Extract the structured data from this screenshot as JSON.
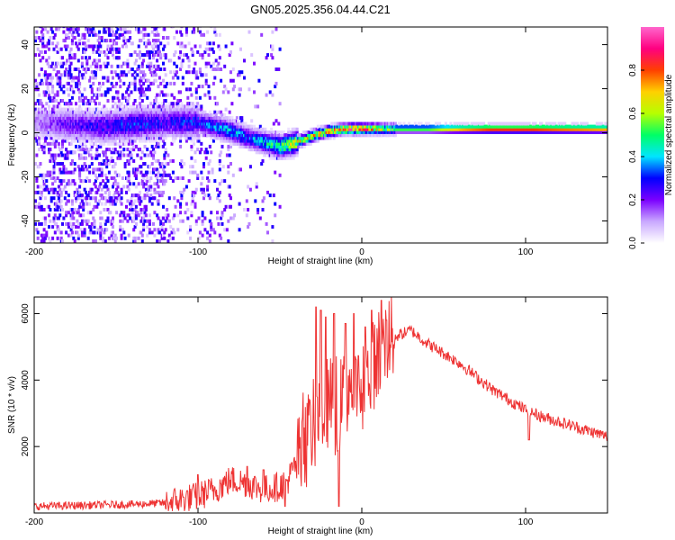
{
  "title": "GN05.2025.356.04.44.C21",
  "chart_data": [
    {
      "type": "heatmap",
      "name": "spectrogram",
      "xlabel": "Height of straight line (km)",
      "ylabel": "Frequency (Hz)",
      "xlim": [
        -200,
        150
      ],
      "ylim": [
        -50,
        48
      ],
      "xticks": [
        "-200",
        "-100",
        "0",
        "100"
      ],
      "yticks": [
        "40",
        "20",
        "0",
        "-20",
        "-40"
      ],
      "colorbar": {
        "label": "Normalized spectral amplitude",
        "range": [
          0,
          1
        ],
        "ticks": [
          "0.0",
          "0.2",
          "0.4",
          "0.6",
          "0.8"
        ],
        "colors": [
          "#ffffff",
          "#c9a8ff",
          "#7b00ff",
          "#0000ff",
          "#00e5ff",
          "#00ff66",
          "#b6ff00",
          "#ffd000",
          "#ff4000",
          "#ff0080",
          "#ff66cc"
        ]
      },
      "ridge": {
        "height_km": [
          -200,
          -180,
          -160,
          -140,
          -120,
          -100,
          -90,
          -80,
          -70,
          -60,
          -50,
          -40,
          -30,
          -20,
          -10,
          0,
          10,
          20,
          40,
          60,
          80,
          100,
          120,
          150
        ],
        "frequency_hz": [
          4,
          3,
          2,
          3,
          4,
          4,
          2,
          0,
          -3,
          -5,
          -7,
          -5,
          -2,
          0,
          1,
          1,
          1,
          1,
          1,
          1,
          1,
          1,
          1,
          1
        ],
        "amplitude": [
          0.15,
          0.25,
          0.3,
          0.35,
          0.3,
          0.35,
          0.4,
          0.45,
          0.4,
          0.45,
          0.6,
          0.75,
          0.8,
          0.85,
          0.9,
          0.9,
          0.7,
          0.55,
          0.55,
          0.75,
          0.85,
          0.85,
          0.8,
          0.75
        ]
      }
    },
    {
      "type": "line",
      "name": "snr",
      "xlabel": "Height of straight line (km)",
      "ylabel": "SNR (10 * v/v)",
      "xlim": [
        -200,
        150
      ],
      "ylim": [
        0,
        6500
      ],
      "xticks": [
        "-200",
        "-100",
        "0",
        "100"
      ],
      "yticks": [
        "6000",
        "4000",
        "2000"
      ],
      "color": "#ee3333",
      "series": [
        {
          "name": "SNR",
          "x": [
            -200,
            -180,
            -160,
            -140,
            -120,
            -100,
            -90,
            -80,
            -70,
            -60,
            -50,
            -45,
            -40,
            -35,
            -30,
            -25,
            -20,
            -15,
            -10,
            -5,
            0,
            5,
            10,
            15,
            20,
            25,
            30,
            35,
            40,
            50,
            60,
            70,
            80,
            90,
            100,
            110,
            120,
            130,
            140,
            150
          ],
          "y": [
            200,
            220,
            240,
            260,
            300,
            500,
            700,
            1000,
            900,
            700,
            800,
            1000,
            1500,
            2000,
            2600,
            3000,
            3400,
            3000,
            3700,
            3800,
            3500,
            4200,
            4800,
            5200,
            5300,
            5400,
            5500,
            5300,
            5100,
            4800,
            4500,
            4100,
            3700,
            3400,
            3100,
            2900,
            2750,
            2600,
            2450,
            2300
          ]
        }
      ],
      "spikes": [
        {
          "x": -28,
          "y": 6200
        },
        {
          "x": -25,
          "y": 6100
        },
        {
          "x": -22,
          "y": 5900
        },
        {
          "x": -17,
          "y": 6000
        },
        {
          "x": -14,
          "y": 200
        },
        {
          "x": -10,
          "y": 5700
        },
        {
          "x": -5,
          "y": 6000
        },
        {
          "x": 2,
          "y": 5600
        },
        {
          "x": 6,
          "y": 6100
        },
        {
          "x": 12,
          "y": 6400
        },
        {
          "x": 15,
          "y": 5800
        },
        {
          "x": -47,
          "y": 200
        },
        {
          "x": -60,
          "y": 1300
        },
        {
          "x": -70,
          "y": 1400
        },
        {
          "x": -100,
          "y": 1150
        },
        {
          "x": 102,
          "y": 2200
        }
      ]
    }
  ]
}
